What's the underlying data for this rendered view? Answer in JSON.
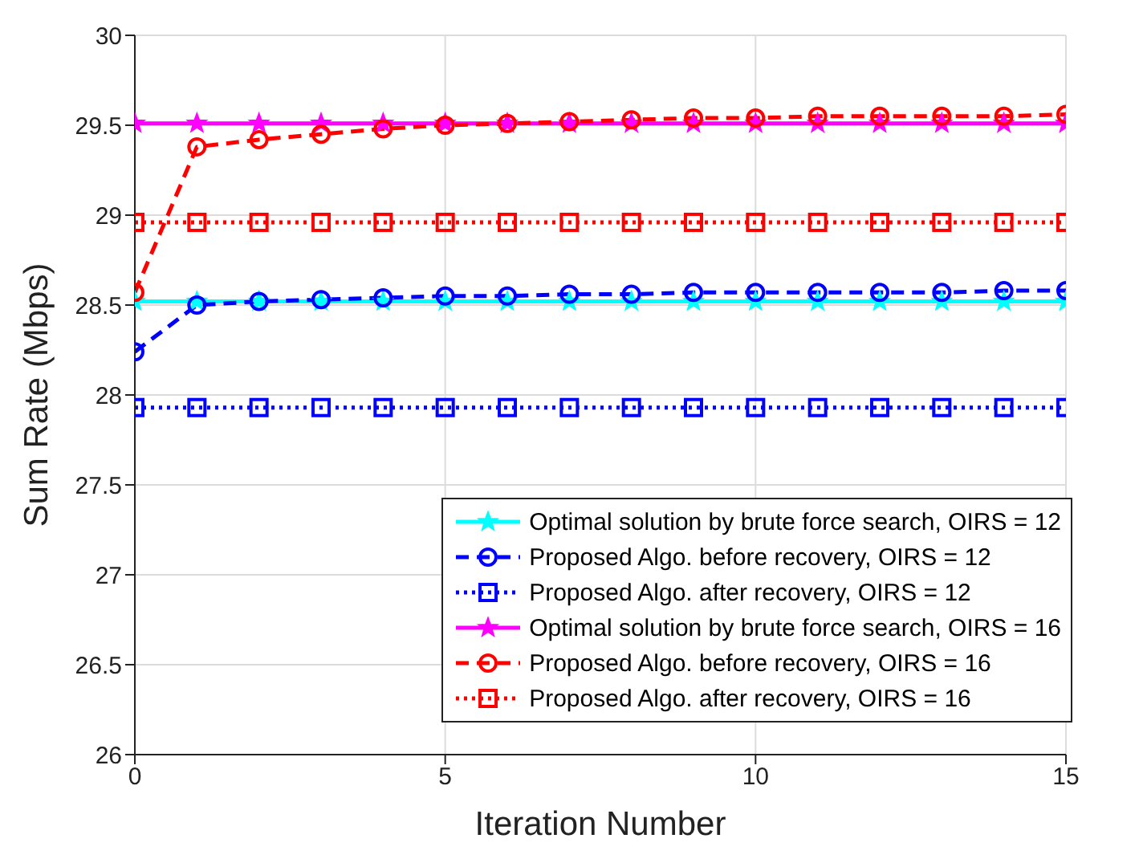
{
  "chart_data": {
    "type": "line",
    "xlabel": "Iteration Number",
    "ylabel": "Sum Rate (Mbps)",
    "x": [
      0,
      1,
      2,
      3,
      4,
      5,
      6,
      7,
      8,
      9,
      10,
      11,
      12,
      13,
      14,
      15
    ],
    "xlim": [
      0,
      15
    ],
    "xticks": [
      0,
      5,
      10,
      15
    ],
    "ylim": [
      26,
      30
    ],
    "yticks": [
      26,
      26.5,
      27,
      27.5,
      28,
      28.5,
      29,
      29.5,
      30
    ],
    "grid": true,
    "legend": "bottom right",
    "series": [
      {
        "name": "Optimal solution by brute force search, OIRS = 12",
        "color": "#00ffff",
        "marker": "star",
        "line_style": "solid",
        "values": [
          28.52,
          28.52,
          28.52,
          28.52,
          28.52,
          28.52,
          28.52,
          28.52,
          28.52,
          28.52,
          28.52,
          28.52,
          28.52,
          28.52,
          28.52,
          28.52
        ]
      },
      {
        "name": "Proposed Algo. before recovery, OIRS = 12",
        "color": "#0000ff",
        "marker": "circle",
        "line_style": "dashed",
        "values": [
          28.24,
          28.5,
          28.52,
          28.53,
          28.54,
          28.55,
          28.55,
          28.56,
          28.56,
          28.57,
          28.57,
          28.57,
          28.57,
          28.57,
          28.58,
          28.58
        ]
      },
      {
        "name": "Proposed Algo. after recovery, OIRS = 12",
        "color": "#0000ff",
        "marker": "square",
        "line_style": "dotted",
        "values": [
          27.93,
          27.93,
          27.93,
          27.93,
          27.93,
          27.93,
          27.93,
          27.93,
          27.93,
          27.93,
          27.93,
          27.93,
          27.93,
          27.93,
          27.93,
          27.93
        ]
      },
      {
        "name": "Optimal solution by brute force search, OIRS = 16",
        "color": "#ff00ff",
        "marker": "star",
        "line_style": "solid",
        "values": [
          29.51,
          29.51,
          29.51,
          29.51,
          29.51,
          29.51,
          29.51,
          29.51,
          29.51,
          29.51,
          29.51,
          29.51,
          29.51,
          29.51,
          29.51,
          29.51
        ]
      },
      {
        "name": "Proposed Algo. before recovery, OIRS = 16",
        "color": "#ff0000",
        "marker": "circle",
        "line_style": "dashed",
        "values": [
          28.57,
          29.38,
          29.42,
          29.45,
          29.48,
          29.5,
          29.51,
          29.52,
          29.53,
          29.54,
          29.54,
          29.55,
          29.55,
          29.55,
          29.55,
          29.56
        ]
      },
      {
        "name": "Proposed Algo. after recovery, OIRS = 16",
        "color": "#ff0000",
        "marker": "square",
        "line_style": "dotted",
        "values": [
          28.96,
          28.96,
          28.96,
          28.96,
          28.96,
          28.96,
          28.96,
          28.96,
          28.96,
          28.96,
          28.96,
          28.96,
          28.96,
          28.96,
          28.96,
          28.96
        ]
      }
    ]
  }
}
